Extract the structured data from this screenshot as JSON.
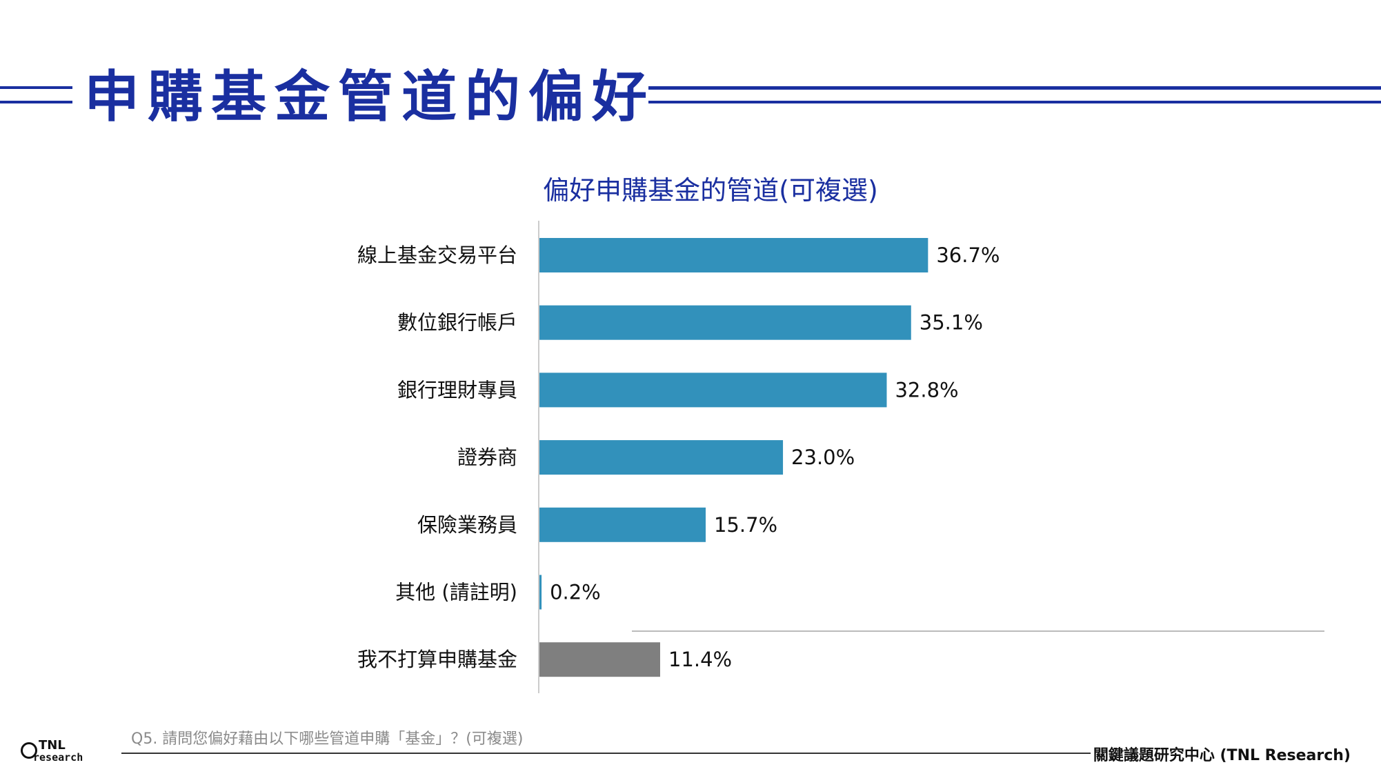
{
  "page": {
    "title": "申購基金管道的偏好",
    "accent_color": "#1a2fa0"
  },
  "chart_data": {
    "type": "bar",
    "orientation": "horizontal",
    "title": "偏好申購基金的管道(可複選)",
    "categories": [
      "線上基金交易平台",
      "數位銀行帳戶",
      "銀行理財專員",
      "證券商",
      "保險業務員",
      "其他 (請註明)",
      "我不打算申購基金"
    ],
    "values": [
      36.7,
      35.1,
      32.8,
      23.0,
      15.7,
      0.2,
      11.4
    ],
    "value_labels": [
      "36.7%",
      "35.1%",
      "32.8%",
      "23.0%",
      "15.7%",
      "0.2%",
      "11.4%"
    ],
    "unit": "%",
    "colors": [
      "#3291bb",
      "#3291bb",
      "#3291bb",
      "#3291bb",
      "#3291bb",
      "#3291bb",
      "#7f7f7f"
    ],
    "xlim": [
      0,
      45
    ],
    "xlabel": "",
    "ylabel": "",
    "grid": false,
    "legend": "none"
  },
  "footer": {
    "question": "Q5. 請問您偏好藉由以下哪些管道申購「基金」？(可複選)",
    "organization": "關鍵議題研究中心 (TNL Research)",
    "logo_top": "TNL",
    "logo_bottom": "research"
  }
}
